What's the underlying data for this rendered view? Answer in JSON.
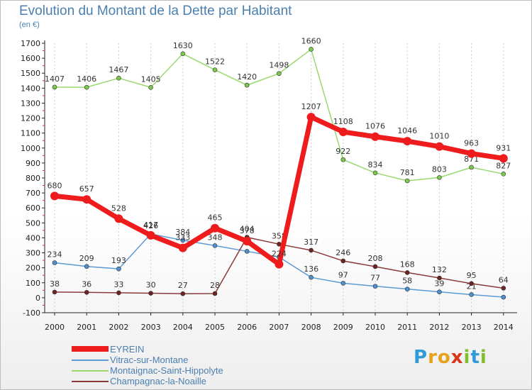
{
  "header": {
    "title": "Evolution du Montant de la Dette par Habitant",
    "subtitle": "(en €)"
  },
  "logo": {
    "text": "Proxiti",
    "letters": [
      {
        "ch": "P",
        "color": "#2f9bd7"
      },
      {
        "ch": "r",
        "color": "#e8a21a"
      },
      {
        "ch": "o",
        "color": "#e8a21a"
      },
      {
        "ch": "x",
        "color": "#d9361d"
      },
      {
        "ch": "i",
        "color": "#7fbf2a"
      },
      {
        "ch": "t",
        "color": "#2f9bd7"
      },
      {
        "ch": "i",
        "color": "#7fbf2a"
      }
    ]
  },
  "chart_data": {
    "type": "line",
    "title": "Evolution du Montant de la Dette par Habitant",
    "subtitle": "(en €)",
    "x": [
      "2000",
      "2001",
      "2002",
      "2003",
      "2004",
      "2005",
      "2006",
      "2007",
      "2008",
      "2009",
      "2010",
      "2011",
      "2012",
      "2013",
      "2014"
    ],
    "ylim": [
      -100,
      1700
    ],
    "yticks": [
      -100,
      0,
      100,
      200,
      300,
      400,
      500,
      600,
      700,
      800,
      900,
      1000,
      1100,
      1200,
      1300,
      1400,
      1500,
      1600,
      1700
    ],
    "grid": "vertical",
    "legend_position": "bottom-left",
    "series": [
      {
        "name": "Vitrac-sur-Montane",
        "color": "#5b9bd5",
        "marker": "#4f8fd0",
        "values": [
          234,
          209,
          193,
          426,
          384,
          348,
          310,
          272,
          136,
          97,
          77,
          58,
          39,
          21,
          4
        ],
        "labels": [
          "234",
          "209",
          "193",
          "426",
          "384",
          "348",
          "",
          "",
          "136",
          "97",
          "77",
          "58",
          "39",
          "21",
          ""
        ]
      },
      {
        "name": "Montaignac-Saint-Hippolyte",
        "color": "#9ad870",
        "marker": "#7cc94a",
        "values": [
          1407,
          1406,
          1467,
          1405,
          1630,
          1522,
          1420,
          1498,
          1660,
          922,
          834,
          781,
          803,
          871,
          827
        ],
        "labels": [
          "1407",
          "1406",
          "1467",
          "1405",
          "1630",
          "1522",
          "1420",
          "1498",
          "1660",
          "922",
          "834",
          "781",
          "803",
          "871",
          "827"
        ]
      },
      {
        "name": "Champagnac-la-Noaille",
        "color": "#8b3a3a",
        "marker": "#6e2323",
        "values": [
          38,
          36,
          33,
          30,
          27,
          28,
          404,
          358,
          317,
          246,
          208,
          168,
          132,
          95,
          64
        ],
        "labels": [
          "38",
          "36",
          "33",
          "30",
          "27",
          "28",
          "404",
          "358",
          "317",
          "246",
          "208",
          "168",
          "132",
          "95",
          "64"
        ]
      },
      {
        "name": "EYREIN",
        "color": "#ee1c1c",
        "marker": "#ee1c1c",
        "values": [
          680,
          657,
          528,
          417,
          333,
          465,
          378,
          224,
          1207,
          1108,
          1076,
          1046,
          1010,
          963,
          931
        ],
        "labels": [
          "680",
          "657",
          "528",
          "417",
          "333",
          "465",
          "378",
          "224",
          "1207",
          "1108",
          "1076",
          "1046",
          "1010",
          "963",
          "931"
        ]
      }
    ],
    "legend": [
      "EYREIN",
      "Vitrac-sur-Montane",
      "Montaignac-Saint-Hippolyte",
      "Champagnac-la-Noaille"
    ]
  }
}
